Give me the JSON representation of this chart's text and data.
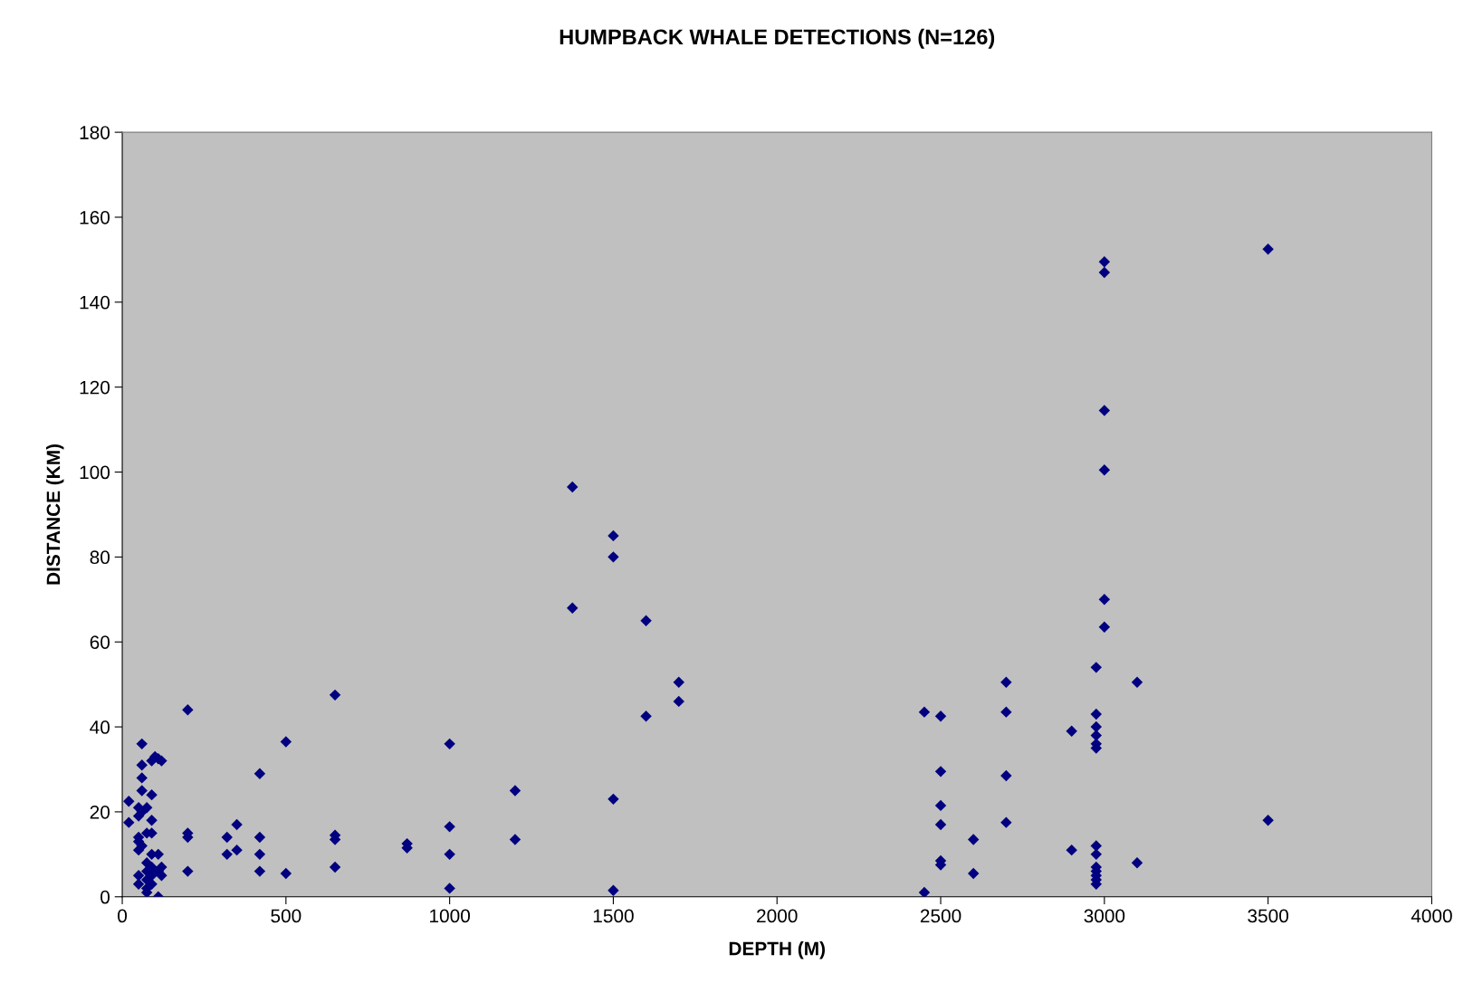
{
  "chart_data": {
    "type": "scatter",
    "title": "HUMPBACK WHALE DETECTIONS (N=126)",
    "xlabel": "DEPTH (M)",
    "ylabel": "DISTANCE (KM)",
    "x": [
      20,
      20,
      50,
      50,
      50,
      50,
      50,
      50,
      50,
      60,
      60,
      60,
      60,
      60,
      60,
      75,
      75,
      75,
      75,
      75,
      75,
      75,
      90,
      90,
      90,
      90,
      90,
      90,
      90,
      90,
      100,
      110,
      110,
      110,
      110,
      120,
      120,
      120,
      200,
      200,
      200,
      200,
      320,
      320,
      350,
      350,
      420,
      420,
      420,
      420,
      500,
      500,
      650,
      650,
      650,
      650,
      870,
      870,
      1000,
      1000,
      1000,
      1000,
      1200,
      1200,
      1375,
      1375,
      1500,
      1500,
      1500,
      1500,
      1600,
      1600,
      1700,
      1700,
      2450,
      2450,
      2500,
      2500,
      2500,
      2500,
      2500,
      2500,
      2600,
      2600,
      2700,
      2700,
      2700,
      2700,
      2900,
      2900,
      2975,
      2975,
      2975,
      2975,
      2975,
      2975,
      2975,
      2975,
      2975,
      2975,
      2975,
      2975,
      2975,
      3000,
      3000,
      3000,
      3000,
      3000,
      3000,
      3100,
      3100,
      3500,
      3500
    ],
    "series": [
      {
        "color": "#000080",
        "values": [
          22.5,
          17.5,
          11,
          13,
          14,
          19,
          21,
          5,
          3,
          36,
          31,
          28,
          25,
          20,
          12,
          21,
          15,
          8,
          6,
          4,
          2,
          1,
          24,
          32,
          18,
          15,
          10,
          7,
          5,
          3,
          33,
          32.5,
          10,
          6,
          0,
          32,
          7,
          5,
          44,
          15,
          14,
          6,
          14,
          10,
          17,
          11,
          29,
          14,
          10,
          6,
          36.5,
          5.5,
          47.5,
          14.5,
          13.5,
          7,
          12.5,
          11.5,
          36,
          16.5,
          10,
          2,
          25,
          13.5,
          96.5,
          68,
          85,
          80,
          23,
          1.5,
          65,
          42.5,
          50.5,
          46,
          43.5,
          1,
          42.5,
          29.5,
          21.5,
          17,
          8.5,
          7.5,
          13.5,
          5.5,
          50.5,
          43.5,
          28.5,
          17.5,
          39,
          11,
          54,
          43,
          40,
          38,
          36,
          35,
          12,
          10,
          7,
          6,
          5,
          4,
          3,
          149.5,
          147,
          114.5,
          100.5,
          70,
          63.5,
          50.5,
          8,
          152.5,
          18
        ]
      }
    ],
    "xlim": [
      0,
      4000
    ],
    "xticks": [
      0,
      500,
      1000,
      1500,
      2000,
      2500,
      3000,
      3500,
      4000
    ],
    "ylim": [
      0,
      180
    ],
    "yticks": [
      0,
      20,
      40,
      60,
      80,
      100,
      120,
      140,
      160,
      180
    ],
    "marker": "diamond",
    "grid": false,
    "legend": false
  }
}
